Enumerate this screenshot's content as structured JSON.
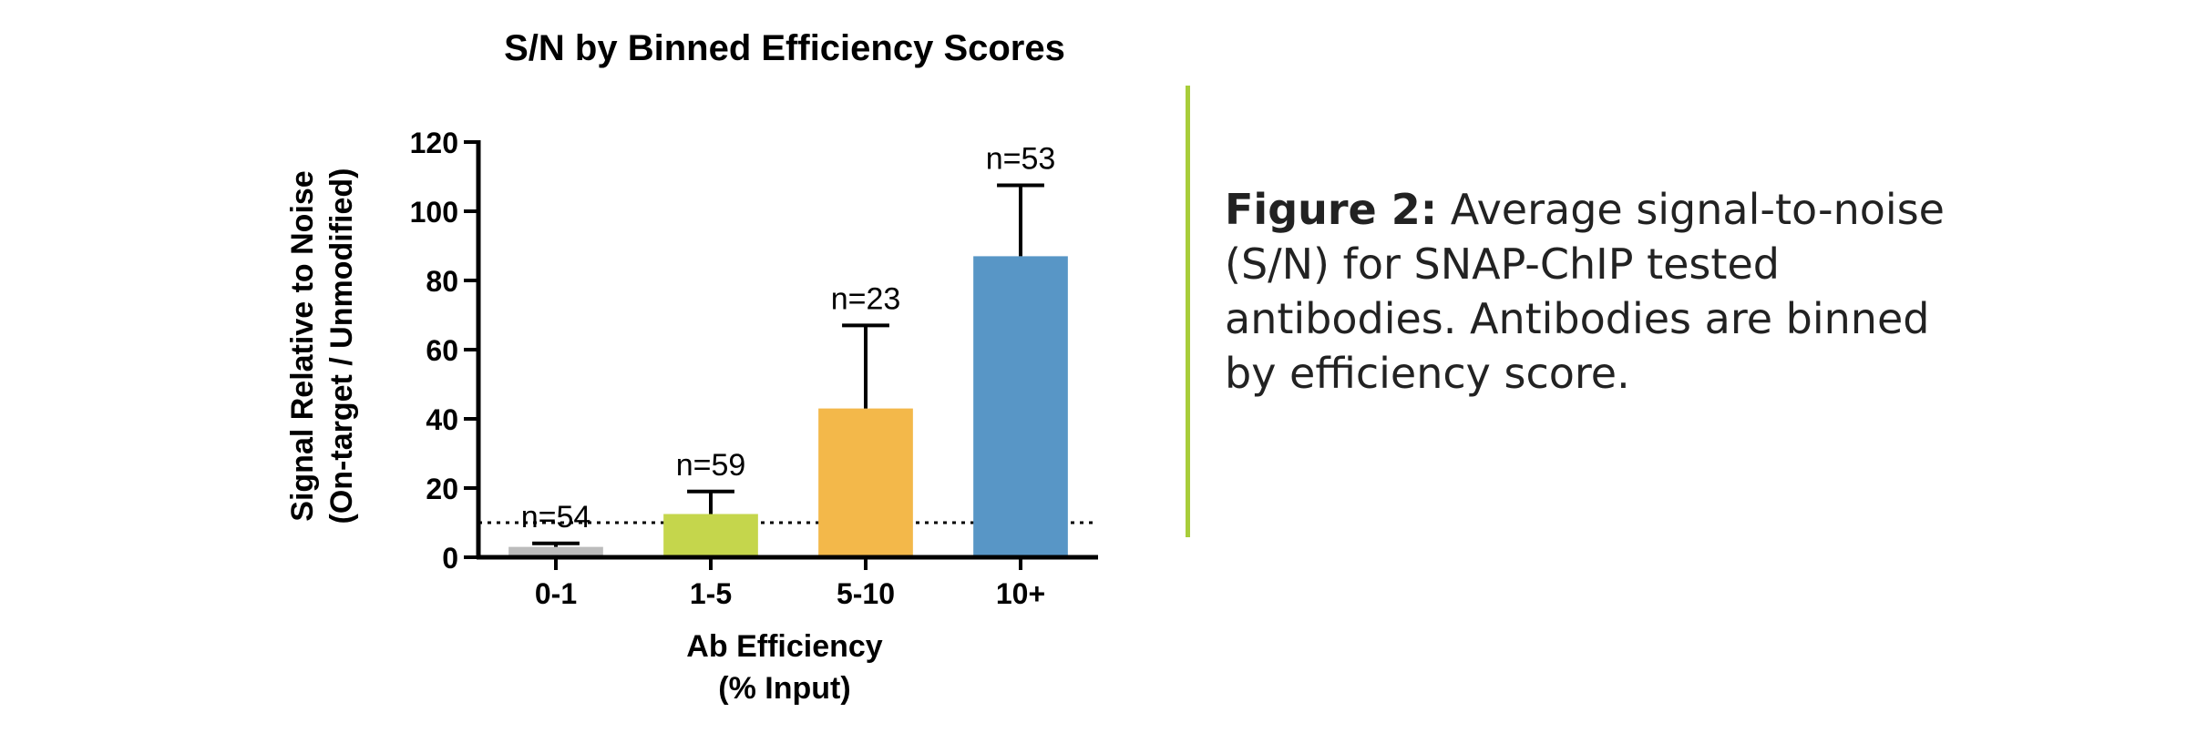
{
  "chart_data": {
    "type": "bar",
    "title": "S/N by Binned Efficiency Scores",
    "xlabel": [
      "Ab Efficiency",
      "(% Input)"
    ],
    "ylabel": [
      "Signal Relative to Noise",
      "(On-target / Unmodified)"
    ],
    "ylim": [
      0,
      120
    ],
    "yticks": [
      0,
      20,
      40,
      60,
      80,
      100,
      120
    ],
    "categories": [
      "0-1",
      "1-5",
      "5-10",
      "10+"
    ],
    "values": [
      3,
      12.5,
      43,
      87
    ],
    "error_upper": [
      4,
      19,
      67,
      107.5
    ],
    "n_labels": [
      "n=54",
      "n=59",
      "n=23",
      "n=53"
    ],
    "colors": [
      "#bcbcbc",
      "#c5d64c",
      "#f3b84a",
      "#5896c6"
    ],
    "reference_line": 10,
    "grid": false,
    "legend": "none"
  },
  "caption": {
    "label": "Figure 2:",
    "text": " Average signal-to-noise (S/N) for SNAP-ChIP tested antibodies. Antibodies are binned by efficiency score."
  },
  "colors": {
    "divider": "#a8cd3a",
    "axis": "#000000"
  }
}
